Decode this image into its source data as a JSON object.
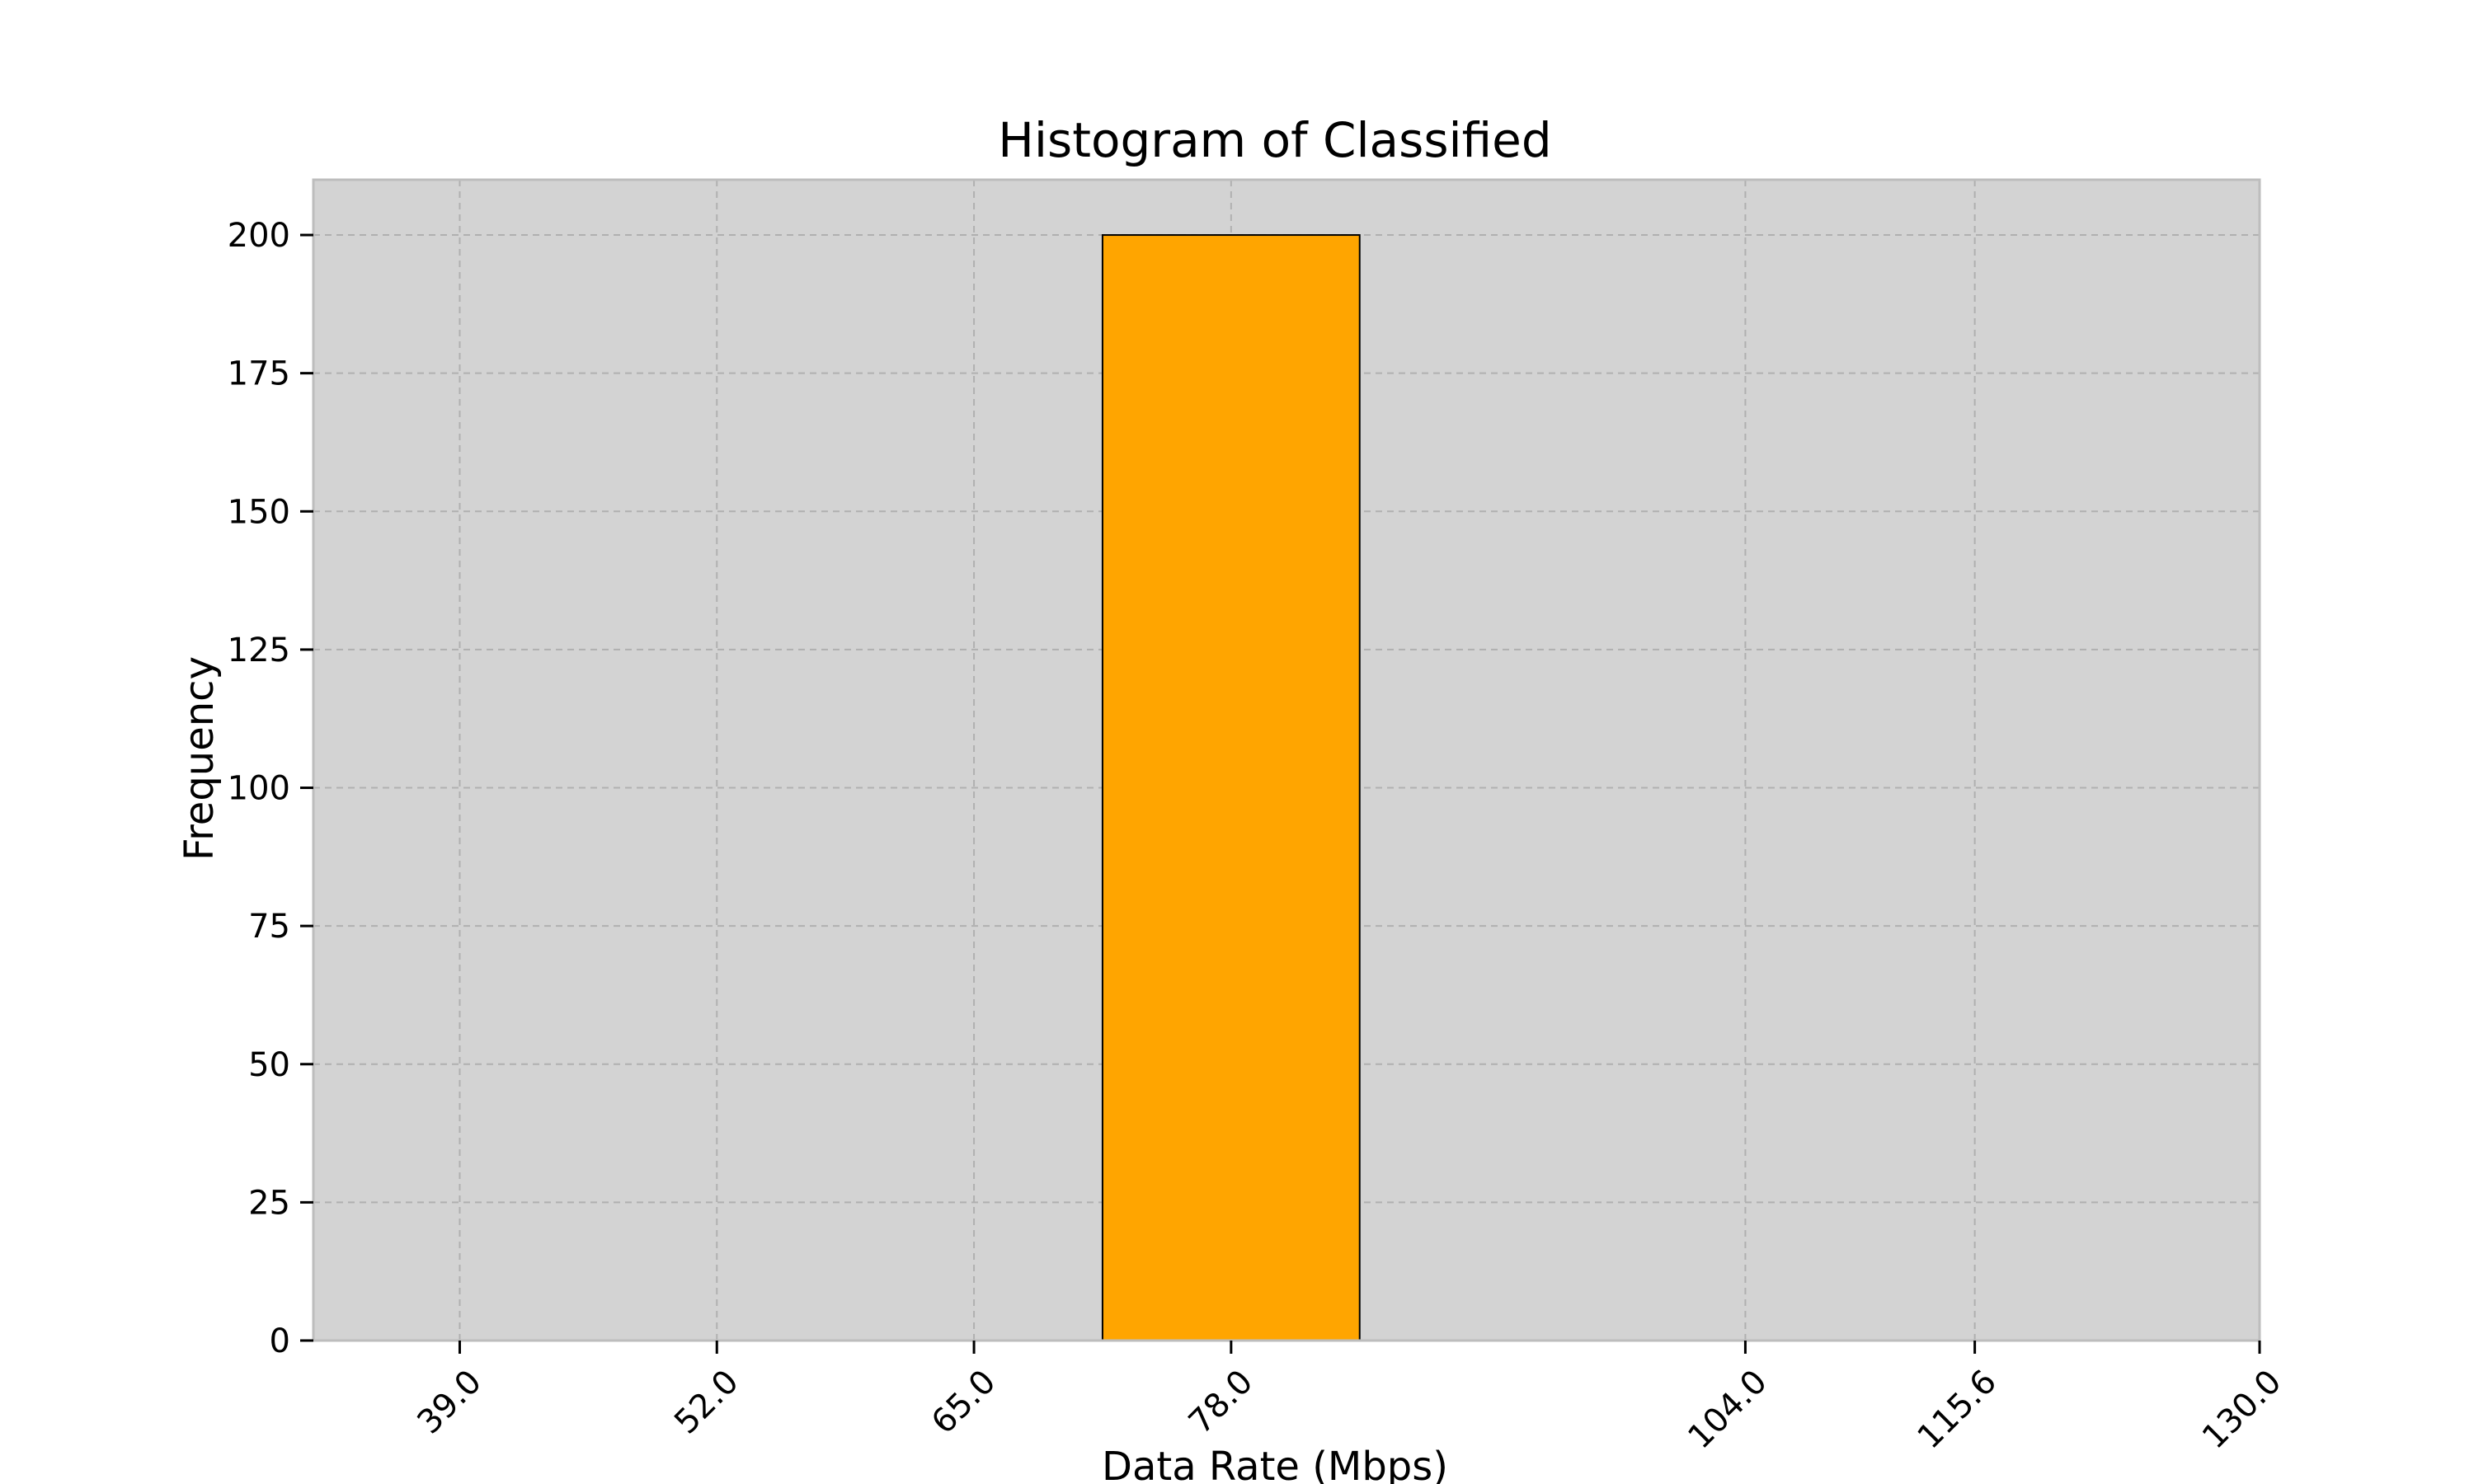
{
  "chart_data": {
    "type": "bar",
    "title": "Histogram of Classified",
    "xlabel": "Data Rate (Mbps)",
    "ylabel": "Frequency",
    "xlim": [
      31.6,
      130.0
    ],
    "ylim": [
      0,
      210
    ],
    "x_ticks": [
      39.0,
      52.0,
      65.0,
      78.0,
      104.0,
      115.6,
      130.0
    ],
    "x_tick_labels": [
      "39.0",
      "52.0",
      "65.0",
      "78.0",
      "104.0",
      "115.6",
      "130.0"
    ],
    "y_ticks": [
      0,
      25,
      50,
      75,
      100,
      125,
      150,
      175,
      200
    ],
    "y_tick_labels": [
      "0",
      "25",
      "50",
      "75",
      "100",
      "125",
      "150",
      "175",
      "200"
    ],
    "bins": [
      {
        "x_start": 71.5,
        "x_end": 84.5,
        "count": 200
      }
    ],
    "grid": true,
    "colors": {
      "bar_fill": "#ffa500",
      "bar_edge": "#000000",
      "axes_background": "#d3d3d3",
      "axes_border": "#bdbdbd",
      "grid": "#b0b0b0"
    }
  }
}
